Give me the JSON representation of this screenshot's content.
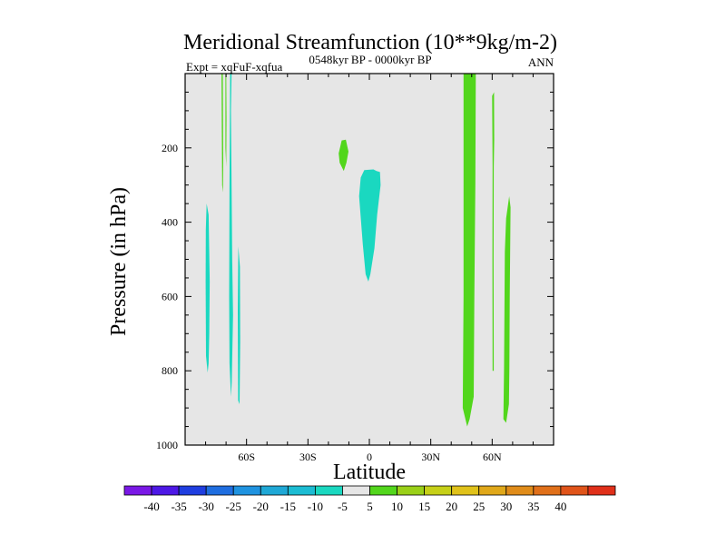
{
  "chart_data": {
    "type": "contour",
    "title": "Meridional Streamfunction (10**9kg/m-2)",
    "subtitle_left": "Expt = xqFuF-xqfua",
    "subtitle_center": "0548kyr BP - 0000kyr BP",
    "subtitle_right": "ANN",
    "xlabel": "Latitude",
    "ylabel": "Pressure (in hPa)",
    "xlim": [
      -90,
      90
    ],
    "ylim": [
      1000,
      0
    ],
    "x_ticks": [
      {
        "value": -60,
        "label": "60S"
      },
      {
        "value": -30,
        "label": "30S"
      },
      {
        "value": 0,
        "label": "0"
      },
      {
        "value": 30,
        "label": "30N"
      },
      {
        "value": 60,
        "label": "60N"
      }
    ],
    "y_ticks": [
      {
        "value": 200,
        "label": "200"
      },
      {
        "value": 400,
        "label": "400"
      },
      {
        "value": 600,
        "label": "600"
      },
      {
        "value": 800,
        "label": "800"
      },
      {
        "value": 1000,
        "label": "1000"
      }
    ],
    "background_color": "#e6e6e6",
    "contour_regions": [
      {
        "name": "cyan-sh-left",
        "level": "-10 to -5",
        "color": "#1ad8c0",
        "points": [
          [
            -79.5,
            350
          ],
          [
            -78.5,
            380
          ],
          [
            -78.0,
            560
          ],
          [
            -78.2,
            700
          ],
          [
            -78.5,
            780
          ],
          [
            -79.0,
            805
          ],
          [
            -79.8,
            760
          ],
          [
            -80.0,
            560
          ],
          [
            -79.9,
            420
          ]
        ]
      },
      {
        "name": "cyan-sh-mid",
        "level": "-10 to -5",
        "color": "#1ad8c0",
        "points": [
          [
            -68.0,
            0
          ],
          [
            -67.3,
            0
          ],
          [
            -67.6,
            100
          ],
          [
            -67.0,
            500
          ],
          [
            -66.6,
            650
          ],
          [
            -67.2,
            830
          ],
          [
            -67.6,
            870
          ],
          [
            -68.3,
            780
          ],
          [
            -68.5,
            600
          ],
          [
            -68.3,
            300
          ]
        ]
      },
      {
        "name": "cyan-sh-right",
        "level": "-10 to -5",
        "color": "#1ad8c0",
        "points": [
          [
            -64.0,
            465
          ],
          [
            -63.2,
            520
          ],
          [
            -63.1,
            720
          ],
          [
            -63.4,
            890
          ],
          [
            -64.1,
            880
          ],
          [
            -64.3,
            640
          ]
        ]
      },
      {
        "name": "green-sh-thin",
        "level": "5 to 10",
        "color": "#52d61c",
        "points": [
          [
            -72.2,
            0
          ],
          [
            -71.6,
            0
          ],
          [
            -71.4,
            230
          ],
          [
            -71.5,
            320
          ],
          [
            -71.9,
            300
          ],
          [
            -72.1,
            150
          ]
        ]
      },
      {
        "name": "green-sh-thin2",
        "level": "5 to 10",
        "color": "#52d61c",
        "points": [
          [
            -70.3,
            0
          ],
          [
            -69.9,
            0
          ],
          [
            -69.8,
            120
          ],
          [
            -69.9,
            250
          ],
          [
            -70.3,
            200
          ]
        ]
      },
      {
        "name": "cyan-equator",
        "level": "-10 to -5",
        "color": "#1ad8c0",
        "points": [
          [
            -2.5,
            260
          ],
          [
            2.0,
            258
          ],
          [
            3.5,
            262
          ],
          [
            5.2,
            265
          ],
          [
            5.5,
            300
          ],
          [
            3.8,
            380
          ],
          [
            2.5,
            470
          ],
          [
            0.5,
            540
          ],
          [
            -0.5,
            560
          ],
          [
            -1.8,
            540
          ],
          [
            -3.2,
            460
          ],
          [
            -5.0,
            330
          ],
          [
            -4.2,
            280
          ]
        ]
      },
      {
        "name": "green-sh-blob",
        "level": "5 to 10",
        "color": "#52d61c",
        "points": [
          [
            -13.5,
            180
          ],
          [
            -11.5,
            178
          ],
          [
            -10.2,
            210
          ],
          [
            -11.2,
            240
          ],
          [
            -12.5,
            262
          ],
          [
            -14.5,
            240
          ],
          [
            -15.0,
            215
          ]
        ]
      },
      {
        "name": "green-nh-band1",
        "level": "5 to 10",
        "color": "#52d61c",
        "points": [
          [
            46.0,
            0
          ],
          [
            52.0,
            0
          ],
          [
            51.8,
            300
          ],
          [
            51.3,
            600
          ],
          [
            51.0,
            870
          ],
          [
            49.0,
            930
          ],
          [
            47.8,
            950
          ],
          [
            45.6,
            900
          ],
          [
            46.0,
            600
          ]
        ]
      },
      {
        "name": "green-nh-thin",
        "level": "5 to 10",
        "color": "#52d61c",
        "points": [
          [
            60.0,
            60
          ],
          [
            60.9,
            50
          ],
          [
            61.0,
            180
          ],
          [
            60.8,
            250
          ],
          [
            60.7,
            500
          ],
          [
            60.8,
            800
          ],
          [
            60.2,
            800
          ],
          [
            60.1,
            500
          ],
          [
            60.2,
            250
          ]
        ]
      },
      {
        "name": "green-nh-band2",
        "level": "5 to 10",
        "color": "#52d61c",
        "points": [
          [
            68.3,
            330
          ],
          [
            69.0,
            360
          ],
          [
            68.6,
            600
          ],
          [
            68.4,
            790
          ],
          [
            68.2,
            890
          ],
          [
            66.8,
            940
          ],
          [
            65.5,
            930
          ],
          [
            65.8,
            800
          ],
          [
            66.2,
            480
          ],
          [
            66.8,
            390
          ]
        ]
      }
    ],
    "colorbar": {
      "colors": [
        "#7a18e6",
        "#4d18e6",
        "#1f3ee0",
        "#1f6ee0",
        "#1f93e0",
        "#1fa8d6",
        "#1cbcd3",
        "#1ad8c0",
        "#e6e6e6",
        "#52d61c",
        "#9ad018",
        "#c6d018",
        "#e0c21a",
        "#e0a81a",
        "#e08c1a",
        "#e0701a",
        "#e0541a",
        "#e0301a"
      ],
      "labels": [
        "-40",
        "-35",
        "-30",
        "-25",
        "-20",
        "-15",
        "-10",
        "-5",
        "5",
        "10",
        "15",
        "20",
        "25",
        "30",
        "35",
        "40"
      ]
    }
  }
}
